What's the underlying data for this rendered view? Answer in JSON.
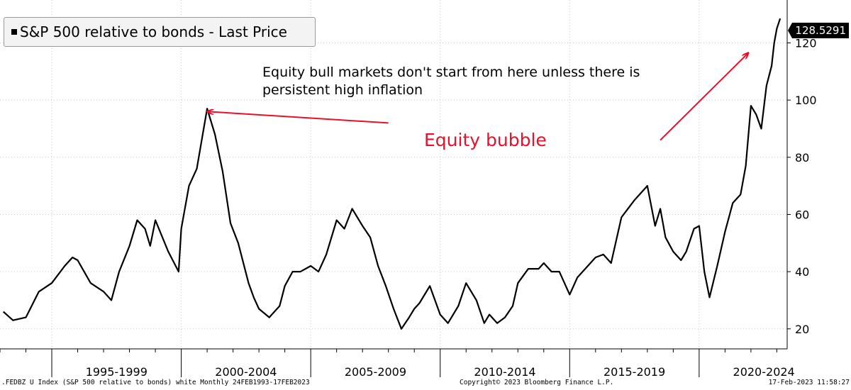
{
  "chart_data": {
    "type": "line",
    "title": "S&P 500 relative to bonds - Last Price",
    "series": [
      {
        "name": "S&P 500 relative to bonds",
        "x": [
          1993.13,
          1993.5,
          1994.0,
          1994.5,
          1995.0,
          1995.5,
          1995.8,
          1996.0,
          1996.5,
          1997.0,
          1997.3,
          1997.6,
          1998.0,
          1998.3,
          1998.6,
          1998.8,
          1999.0,
          1999.5,
          1999.9,
          2000.0,
          2000.3,
          2000.6,
          2001.0,
          2001.3,
          2001.6,
          2001.9,
          2002.2,
          2002.6,
          2002.8,
          2003.0,
          2003.4,
          2003.8,
          2004.0,
          2004.3,
          2004.6,
          2005.0,
          2005.3,
          2005.6,
          2006.0,
          2006.3,
          2006.6,
          2007.0,
          2007.3,
          2007.6,
          2007.9,
          2008.2,
          2008.5,
          2008.8,
          2009.0,
          2009.2,
          2009.6,
          2010.0,
          2010.3,
          2010.7,
          2011.0,
          2011.4,
          2011.7,
          2011.9,
          2012.2,
          2012.5,
          2012.8,
          2013.0,
          2013.4,
          2013.8,
          2014.0,
          2014.3,
          2014.6,
          2015.0,
          2015.3,
          2015.6,
          2016.0,
          2016.3,
          2016.6,
          2017.0,
          2017.5,
          2018.0,
          2018.3,
          2018.5,
          2018.7,
          2019.0,
          2019.3,
          2019.5,
          2019.8,
          2020.0,
          2020.2,
          2020.4,
          2020.7,
          2021.0,
          2021.3,
          2021.6,
          2021.8,
          2022.0,
          2022.2,
          2022.4,
          2022.6,
          2022.8,
          2022.9,
          2023.0,
          2023.13
        ],
        "values": [
          26,
          23,
          24,
          33,
          36,
          42,
          45,
          44,
          36,
          33,
          30,
          40,
          49,
          58,
          55,
          49,
          58,
          47,
          40,
          55,
          70,
          76,
          97,
          88,
          75,
          57,
          50,
          36,
          31,
          27,
          24,
          28,
          35,
          40,
          40,
          42,
          40,
          46,
          58,
          55,
          62,
          56,
          52,
          42,
          35,
          27,
          20,
          24,
          27,
          29,
          35,
          25,
          22,
          28,
          36,
          30,
          22,
          25,
          22,
          24,
          28,
          36,
          41,
          41,
          43,
          40,
          40,
          32,
          38,
          41,
          45,
          46,
          43,
          59,
          65,
          70,
          56,
          62,
          52,
          47,
          44,
          47,
          55,
          56,
          40,
          31,
          42,
          54,
          64,
          67,
          77,
          98,
          95,
          90,
          105,
          112,
          120,
          125,
          128.5291
        ],
        "last_value": "128.5291"
      }
    ],
    "xlim": [
      1993.0,
      2023.4
    ],
    "ylim": [
      13,
      135
    ],
    "y_ticks": [
      "20",
      "40",
      "60",
      "80",
      "100",
      "120"
    ],
    "y_tick_values": [
      20,
      40,
      60,
      80,
      100,
      120
    ],
    "x_period_labels": [
      "1995-1999",
      "2000-2004",
      "2005-2009",
      "2010-2014",
      "2015-2019",
      "2020-2024"
    ],
    "x_period_centers": [
      1997.5,
      2002.5,
      2007.5,
      2012.5,
      2017.5,
      2022.5
    ],
    "x_year_ticks": [
      1993,
      1994,
      1995,
      1996,
      1997,
      1998,
      1999,
      2000,
      2001,
      2002,
      2003,
      2004,
      2005,
      2006,
      2007,
      2008,
      2009,
      2010,
      2011,
      2012,
      2013,
      2014,
      2015,
      2016,
      2017,
      2018,
      2019,
      2020,
      2021,
      2022,
      2023
    ],
    "annotations": {
      "note": "Equity bull markets don't start from here unless there is persistent high inflation",
      "bubble": "Equity bubble",
      "bubble_arrow": {
        "from": [
          2008.0,
          92.0
        ],
        "to": [
          2001.0,
          96.0
        ]
      },
      "inflation_arrow": {
        "from": [
          2018.5,
          86.0
        ],
        "to": [
          2021.9,
          116.5
        ]
      }
    },
    "grid": true,
    "colors": {
      "line": "#000000",
      "grid": "#c8c8c8",
      "annotation": "#e8102a",
      "axis": "#000000"
    }
  },
  "legend": {
    "label": "S&P 500 relative to bonds - Last Price"
  },
  "footer": {
    "left": ".FEDBZ U Index (S&P 500 relative to bonds) white  Monthly 24FEB1993-17FEB2023",
    "center": "Copyright© 2023 Bloomberg Finance L.P.",
    "right": "17-Feb-2023 11:58:27"
  }
}
